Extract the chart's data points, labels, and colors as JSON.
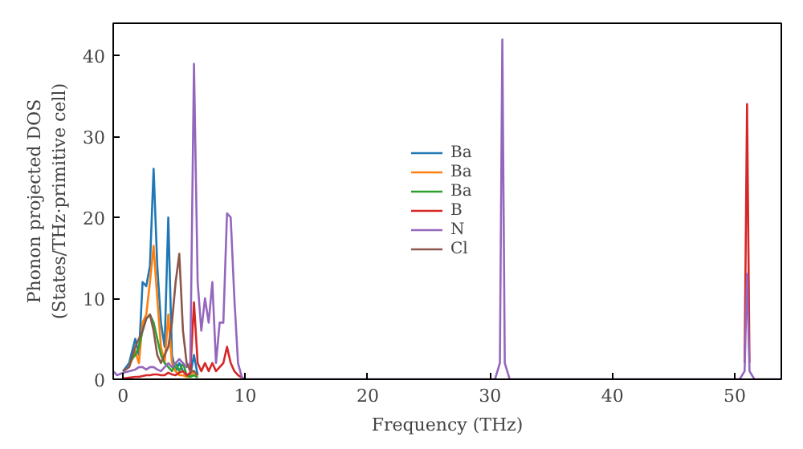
{
  "chart_data": {
    "type": "line",
    "xlabel": "Frequency (THz)",
    "ylabel": "Phonon projected DOS\n(States/THz·primitive cell)",
    "x": [
      -0.8,
      -0.5,
      0,
      0.5,
      1,
      1.3,
      1.6,
      1.9,
      2.2,
      2.5,
      2.8,
      3.1,
      3.4,
      3.7,
      4.0,
      4.3,
      4.6,
      4.9,
      5.2,
      5.5,
      5.8,
      6.1,
      6.4,
      6.7,
      7.0,
      7.3,
      7.6,
      7.9,
      8.2,
      8.5,
      8.8,
      9.1,
      9.4,
      9.7,
      10.0,
      30.4,
      30.8,
      31.0,
      31.2,
      31.6,
      50.4,
      50.8,
      51.0,
      51.2,
      51.6,
      53.8
    ],
    "series": [
      {
        "name": "Ba",
        "color": "#1f77b4",
        "values": [
          null,
          null,
          1,
          2,
          5,
          3,
          12,
          11.5,
          14,
          26,
          14,
          7,
          4,
          20,
          3,
          1,
          2,
          1,
          0.5,
          0.5,
          3,
          0.5,
          null,
          null,
          null,
          null,
          null,
          null,
          null,
          null,
          null,
          null,
          null,
          null,
          null,
          null,
          null,
          null,
          null,
          null,
          null,
          null,
          null,
          null,
          null,
          null
        ]
      },
      {
        "name": "Ba",
        "color": "#ff7f0e",
        "values": [
          null,
          null,
          null,
          1.5,
          3.5,
          2,
          7,
          8,
          12,
          16.5,
          10,
          4,
          2,
          8,
          2,
          1,
          0.5,
          0.5,
          0.3,
          0.3,
          1,
          0.3,
          null,
          null,
          null,
          null,
          null,
          null,
          null,
          null,
          null,
          null,
          null,
          null,
          null,
          null,
          null,
          null,
          null,
          null,
          null,
          null,
          null,
          null,
          null,
          null
        ]
      },
      {
        "name": "Ba",
        "color": "#2ca02c",
        "values": [
          null,
          null,
          null,
          2,
          3,
          4,
          6,
          7.5,
          8,
          7,
          5,
          3,
          2,
          1.5,
          1,
          2,
          1,
          2,
          0.5,
          0.3,
          0.5,
          0.2,
          null,
          null,
          null,
          null,
          null,
          null,
          null,
          null,
          null,
          null,
          null,
          null,
          null,
          null,
          null,
          null,
          null,
          null,
          null,
          null,
          null,
          null,
          null,
          null
        ]
      },
      {
        "name": "B",
        "color": "#d62728",
        "values": [
          null,
          null,
          0.1,
          0.2,
          0.3,
          0.3,
          0.4,
          0.5,
          0.5,
          0.6,
          0.6,
          0.5,
          0.5,
          0.8,
          0.6,
          0.5,
          0.8,
          1,
          0.5,
          0.8,
          9.5,
          2,
          1,
          2,
          1,
          2,
          1,
          1.5,
          2,
          4,
          2,
          1,
          0.5,
          0.2,
          null,
          null,
          null,
          null,
          null,
          null,
          null,
          2,
          34,
          2,
          null,
          null
        ]
      },
      {
        "name": "N",
        "color": "#9467bd",
        "values": [
          1,
          0.5,
          0.8,
          1,
          1.2,
          1.5,
          1.5,
          1.2,
          1.5,
          1.5,
          1.2,
          1,
          1.5,
          2,
          1.5,
          2,
          2.5,
          2,
          1.5,
          2,
          39,
          12,
          6,
          10,
          7,
          12,
          2,
          7,
          7,
          20.5,
          20,
          10,
          2,
          0.3,
          0,
          0,
          2,
          42,
          2,
          0,
          0,
          1,
          13,
          1,
          0,
          0
        ]
      },
      {
        "name": "Cl",
        "color": "#8c564b",
        "values": [
          null,
          null,
          1,
          1.5,
          4,
          5,
          6,
          7.5,
          8,
          6,
          3,
          2,
          3,
          4,
          7,
          12,
          15.5,
          6,
          2,
          1,
          1,
          0.5,
          null,
          null,
          null,
          null,
          null,
          null,
          null,
          null,
          null,
          null,
          null,
          null,
          null,
          null,
          null,
          null,
          null,
          null,
          null,
          null,
          null,
          null,
          null,
          null
        ]
      }
    ],
    "xlim": [
      -0.8,
      53.8
    ],
    "ylim": [
      0,
      44
    ],
    "xticks": [
      0,
      10,
      20,
      30,
      40,
      50
    ],
    "yticks": [
      0,
      10,
      20,
      30,
      40
    ],
    "grid": false,
    "legend": "center",
    "marker": "none",
    "line_style": "solid"
  }
}
